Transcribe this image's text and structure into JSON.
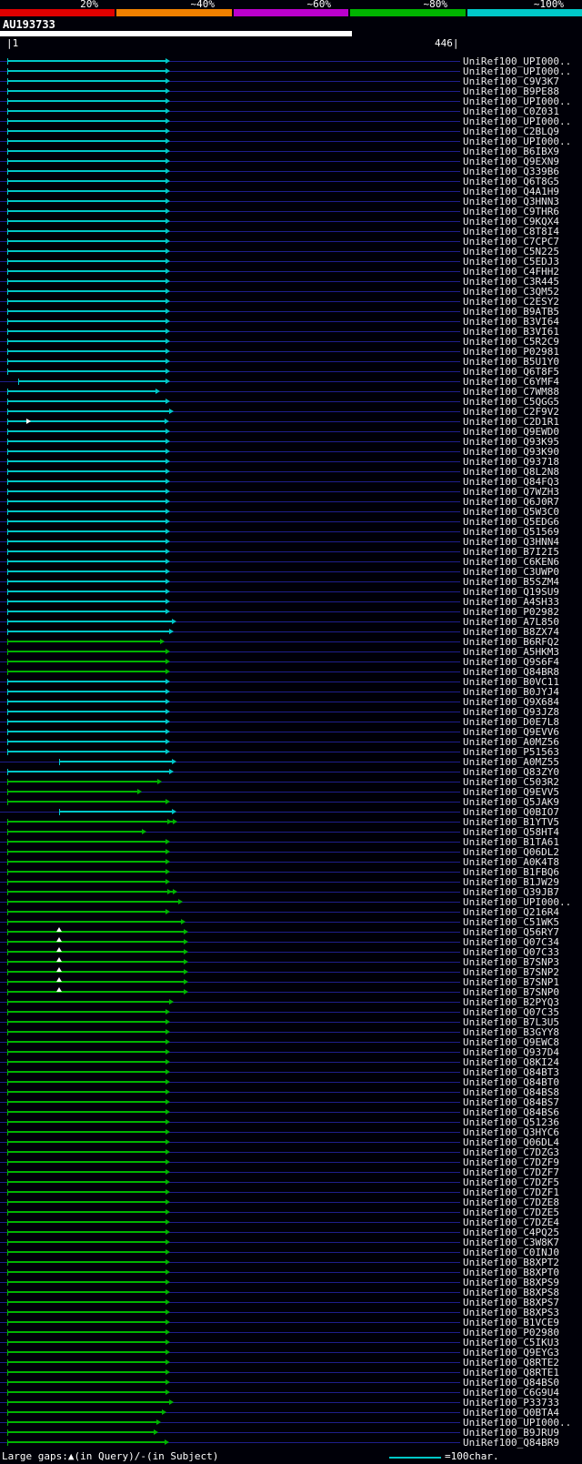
{
  "colors": {
    "background": "#000008",
    "grid_line": "#1e1e8a",
    "text": "#e8e8e8",
    "cyan": "#00c8c8",
    "green": "#00b400",
    "key_segments": [
      "#e00000",
      "#f08000",
      "#bb00cc",
      "#00b400",
      "#00c8c8"
    ],
    "query_bar": "#ffffff",
    "marker": "#ffffff"
  },
  "query": {
    "name": "AU193733"
  },
  "ruler": {
    "start_label": "|1",
    "end_label": "446|"
  },
  "footer": {
    "gaps_label": "Large gaps:▲(in Query)/-(in Subject)",
    "scale_label": "=100char."
  },
  "chart_data": {
    "type": "alignment_overview_span_chart",
    "title": "AU193733",
    "query_name": "AU193733",
    "query_range": [
      1,
      446
    ],
    "legend_position": "top",
    "identity_key": [
      {
        "label": "20%",
        "color": "#e00000"
      },
      {
        "label": "~40%",
        "color": "#f08000"
      },
      {
        "label": "~60%",
        "color": "#bb00cc"
      },
      {
        "label": "~80%",
        "color": "#00b400"
      },
      {
        "label": "~100%",
        "color": "#00c8c8"
      }
    ],
    "hits": [
      {
        "id": "UniRef100_UPI000..",
        "identity": "~100%",
        "qs": 1,
        "qe": 158
      },
      {
        "id": "UniRef100_UPI000..",
        "identity": "~100%",
        "qs": 1,
        "qe": 158
      },
      {
        "id": "UniRef100_C9V3K7",
        "identity": "~100%",
        "qs": 1,
        "qe": 158
      },
      {
        "id": "UniRef100_B9PE88",
        "identity": "~100%",
        "qs": 1,
        "qe": 158
      },
      {
        "id": "UniRef100_UPI000..",
        "identity": "~100%",
        "qs": 1,
        "qe": 158
      },
      {
        "id": "UniRef100_C0Z031",
        "identity": "~100%",
        "qs": 1,
        "qe": 158
      },
      {
        "id": "UniRef100_UPI000..",
        "identity": "~100%",
        "qs": 1,
        "qe": 158
      },
      {
        "id": "UniRef100_C2BLQ9",
        "identity": "~100%",
        "qs": 1,
        "qe": 158
      },
      {
        "id": "UniRef100_UPI000..",
        "identity": "~100%",
        "qs": 1,
        "qe": 158
      },
      {
        "id": "UniRef100_B6IBX9",
        "identity": "~100%",
        "qs": 1,
        "qe": 158
      },
      {
        "id": "UniRef100_Q9EXN9",
        "identity": "~100%",
        "qs": 1,
        "qe": 158
      },
      {
        "id": "UniRef100_Q339B6",
        "identity": "~100%",
        "qs": 1,
        "qe": 158
      },
      {
        "id": "UniRef100_Q6T8G5",
        "identity": "~100%",
        "qs": 1,
        "qe": 158
      },
      {
        "id": "UniRef100_Q4A1H9",
        "identity": "~100%",
        "qs": 1,
        "qe": 158
      },
      {
        "id": "UniRef100_Q3HNN3",
        "identity": "~100%",
        "qs": 1,
        "qe": 158
      },
      {
        "id": "UniRef100_C9THR6",
        "identity": "~100%",
        "qs": 1,
        "qe": 158
      },
      {
        "id": "UniRef100_C9KQX4",
        "identity": "~100%",
        "qs": 1,
        "qe": 158
      },
      {
        "id": "UniRef100_C8T8I4",
        "identity": "~100%",
        "qs": 1,
        "qe": 158
      },
      {
        "id": "UniRef100_C7CPC7",
        "identity": "~100%",
        "qs": 1,
        "qe": 158
      },
      {
        "id": "UniRef100_C5N225",
        "identity": "~100%",
        "qs": 1,
        "qe": 158
      },
      {
        "id": "UniRef100_C5EDJ3",
        "identity": "~100%",
        "qs": 1,
        "qe": 158
      },
      {
        "id": "UniRef100_C4FHH2",
        "identity": "~100%",
        "qs": 1,
        "qe": 158
      },
      {
        "id": "UniRef100_C3R445",
        "identity": "~100%",
        "qs": 1,
        "qe": 158
      },
      {
        "id": "UniRef100_C3QM52",
        "identity": "~100%",
        "qs": 1,
        "qe": 158
      },
      {
        "id": "UniRef100_C2ESY2",
        "identity": "~100%",
        "qs": 1,
        "qe": 158
      },
      {
        "id": "UniRef100_B9ATB5",
        "identity": "~100%",
        "qs": 1,
        "qe": 158
      },
      {
        "id": "UniRef100_B3VI64",
        "identity": "~100%",
        "qs": 1,
        "qe": 158
      },
      {
        "id": "UniRef100_B3VI61",
        "identity": "~100%",
        "qs": 1,
        "qe": 158
      },
      {
        "id": "UniRef100_C5R2C9",
        "identity": "~100%",
        "qs": 1,
        "qe": 158
      },
      {
        "id": "UniRef100_P02981",
        "identity": "~100%",
        "qs": 1,
        "qe": 158
      },
      {
        "id": "UniRef100_B5U1Y0",
        "identity": "~100%",
        "qs": 1,
        "qe": 158
      },
      {
        "id": "UniRef100_Q6T8F5",
        "identity": "~100%",
        "qs": 1,
        "qe": 158
      },
      {
        "id": "UniRef100_C6YMF4",
        "identity": "~100%",
        "qs": 12,
        "qe": 158
      },
      {
        "id": "UniRef100_C7WM88",
        "identity": "~100%",
        "qs": 1,
        "qe": 148
      },
      {
        "id": "UniRef100_C5QGG5",
        "identity": "~100%",
        "qs": 1,
        "qe": 158
      },
      {
        "id": "UniRef100_C2F9V2",
        "identity": "~100%",
        "qs": 1,
        "qe": 161
      },
      {
        "id": "UniRef100_C2D1R1",
        "identity": "~100%",
        "qs": 1,
        "qe": 157,
        "marks": [
          {
            "q": 23,
            "shape": "right"
          }
        ]
      },
      {
        "id": "UniRef100_Q9EWD0",
        "identity": "~100%",
        "qs": 1,
        "qe": 158
      },
      {
        "id": "UniRef100_Q93K95",
        "identity": "~100%",
        "qs": 1,
        "qe": 158
      },
      {
        "id": "UniRef100_Q93K90",
        "identity": "~100%",
        "qs": 1,
        "qe": 158
      },
      {
        "id": "UniRef100_Q93718",
        "identity": "~100%",
        "qs": 1,
        "qe": 158
      },
      {
        "id": "UniRef100_Q8L2N8",
        "identity": "~100%",
        "qs": 1,
        "qe": 158
      },
      {
        "id": "UniRef100_Q84FQ3",
        "identity": "~100%",
        "qs": 1,
        "qe": 158
      },
      {
        "id": "UniRef100_Q7WZH3",
        "identity": "~100%",
        "qs": 1,
        "qe": 158
      },
      {
        "id": "UniRef100_Q6J0R7",
        "identity": "~100%",
        "qs": 1,
        "qe": 158
      },
      {
        "id": "UniRef100_Q5W3C0",
        "identity": "~100%",
        "qs": 1,
        "qe": 158
      },
      {
        "id": "UniRef100_Q5EDG6",
        "identity": "~100%",
        "qs": 1,
        "qe": 158
      },
      {
        "id": "UniRef100_Q51569",
        "identity": "~100%",
        "qs": 1,
        "qe": 158
      },
      {
        "id": "UniRef100_Q3HNN4",
        "identity": "~100%",
        "qs": 1,
        "qe": 158
      },
      {
        "id": "UniRef100_B7I2I5",
        "identity": "~100%",
        "qs": 1,
        "qe": 158
      },
      {
        "id": "UniRef100_C6KEN6",
        "identity": "~100%",
        "qs": 1,
        "qe": 158
      },
      {
        "id": "UniRef100_C3UWP0",
        "identity": "~100%",
        "qs": 1,
        "qe": 158
      },
      {
        "id": "UniRef100_B5SZM4",
        "identity": "~100%",
        "qs": 1,
        "qe": 158
      },
      {
        "id": "UniRef100_Q19SU9",
        "identity": "~100%",
        "qs": 1,
        "qe": 158
      },
      {
        "id": "UniRef100_A4SH33",
        "identity": "~100%",
        "qs": 1,
        "qe": 158
      },
      {
        "id": "UniRef100_P02982",
        "identity": "~100%",
        "qs": 1,
        "qe": 158
      },
      {
        "id": "UniRef100_A7L850",
        "identity": "~100%",
        "qs": 1,
        "qe": 164
      },
      {
        "id": "UniRef100_B8ZX74",
        "identity": "~100%",
        "qs": 1,
        "qe": 161
      },
      {
        "id": "UniRef100_B6RFQ2",
        "identity": "~80%",
        "qs": 1,
        "qe": 152
      },
      {
        "id": "UniRef100_A5HKM3",
        "identity": "~80%",
        "qs": 1,
        "qe": 158
      },
      {
        "id": "UniRef100_Q9S6F4",
        "identity": "~80%",
        "qs": 1,
        "qe": 158
      },
      {
        "id": "UniRef100_Q84BR8",
        "identity": "~80%",
        "qs": 1,
        "qe": 158
      },
      {
        "id": "UniRef100_B0VC11",
        "identity": "~100%",
        "qs": 1,
        "qe": 158
      },
      {
        "id": "UniRef100_B0JYJ4",
        "identity": "~100%",
        "qs": 1,
        "qe": 158
      },
      {
        "id": "UniRef100_Q9X684",
        "identity": "~100%",
        "qs": 1,
        "qe": 158
      },
      {
        "id": "UniRef100_Q93JZ8",
        "identity": "~100%",
        "qs": 1,
        "qe": 158
      },
      {
        "id": "UniRef100_D0E7L8",
        "identity": "~100%",
        "qs": 1,
        "qe": 158
      },
      {
        "id": "UniRef100_Q9EVV6",
        "identity": "~100%",
        "qs": 1,
        "qe": 158
      },
      {
        "id": "UniRef100_A0MZ56",
        "identity": "~100%",
        "qs": 1,
        "qe": 158
      },
      {
        "id": "UniRef100_P51563",
        "identity": "~100%",
        "qs": 1,
        "qe": 158
      },
      {
        "id": "UniRef100_A0MZ55",
        "identity": "~100%",
        "qs": 52,
        "qe": 164
      },
      {
        "id": "UniRef100_Q83ZY0",
        "identity": "~100%",
        "qs": 1,
        "qe": 161
      },
      {
        "id": "UniRef100_C503R2",
        "identity": "~80%",
        "qs": 1,
        "qe": 150
      },
      {
        "id": "UniRef100_Q9EVV5",
        "identity": "~80%",
        "qs": 1,
        "qe": 130
      },
      {
        "id": "UniRef100_Q5JAK9",
        "identity": "~80%",
        "qs": 1,
        "qe": 158
      },
      {
        "id": "UniRef100_Q0BIO7",
        "identity": "~100%",
        "qs": 52,
        "qe": 164
      },
      {
        "id": "UniRef100_B1YTV5",
        "identity": "~80%",
        "qs": 1,
        "qe": 165,
        "arrows": 2
      },
      {
        "id": "UniRef100_Q58HT4",
        "identity": "~80%",
        "qs": 1,
        "qe": 134
      },
      {
        "id": "UniRef100_B1TA61",
        "identity": "~80%",
        "qs": 1,
        "qe": 158
      },
      {
        "id": "UniRef100_Q06DL2",
        "identity": "~80%",
        "qs": 1,
        "qe": 158
      },
      {
        "id": "UniRef100_A0K4T8",
        "identity": "~80%",
        "qs": 1,
        "qe": 158
      },
      {
        "id": "UniRef100_B1FBQ6",
        "identity": "~80%",
        "qs": 1,
        "qe": 158
      },
      {
        "id": "UniRef100_B1JW29",
        "identity": "~80%",
        "qs": 1,
        "qe": 158
      },
      {
        "id": "UniRef100_Q39JB7",
        "identity": "~80%",
        "qs": 1,
        "qe": 165,
        "arrows": 2
      },
      {
        "id": "UniRef100_UPI000..",
        "identity": "~80%",
        "qs": 1,
        "qe": 170
      },
      {
        "id": "UniRef100_Q216R4",
        "identity": "~80%",
        "qs": 1,
        "qe": 158
      },
      {
        "id": "UniRef100_C51WK5",
        "identity": "~80%",
        "qs": 1,
        "qe": 173
      },
      {
        "id": "UniRef100_Q56RY7",
        "identity": "~80%",
        "qs": 1,
        "qe": 176,
        "marks": [
          {
            "q": 52,
            "shape": "up"
          }
        ]
      },
      {
        "id": "UniRef100_Q07C34",
        "identity": "~80%",
        "qs": 1,
        "qe": 176,
        "marks": [
          {
            "q": 52,
            "shape": "up"
          }
        ]
      },
      {
        "id": "UniRef100_Q07C33",
        "identity": "~80%",
        "qs": 1,
        "qe": 176,
        "marks": [
          {
            "q": 52,
            "shape": "up"
          }
        ]
      },
      {
        "id": "UniRef100_B7SNP3",
        "identity": "~80%",
        "qs": 1,
        "qe": 176,
        "marks": [
          {
            "q": 52,
            "shape": "up"
          }
        ]
      },
      {
        "id": "UniRef100_B7SNP2",
        "identity": "~80%",
        "qs": 1,
        "qe": 176,
        "marks": [
          {
            "q": 52,
            "shape": "up"
          }
        ]
      },
      {
        "id": "UniRef100_B7SNP1",
        "identity": "~80%",
        "qs": 1,
        "qe": 176,
        "marks": [
          {
            "q": 52,
            "shape": "up"
          }
        ]
      },
      {
        "id": "UniRef100_B7SNP0",
        "identity": "~80%",
        "qs": 1,
        "qe": 176,
        "marks": [
          {
            "q": 52,
            "shape": "up"
          }
        ]
      },
      {
        "id": "UniRef100_B2PYQ3",
        "identity": "~80%",
        "qs": 1,
        "qe": 161
      },
      {
        "id": "UniRef100_Q07C35",
        "identity": "~80%",
        "qs": 1,
        "qe": 158
      },
      {
        "id": "UniRef100_B7L3U5",
        "identity": "~80%",
        "qs": 1,
        "qe": 158
      },
      {
        "id": "UniRef100_B3GYY8",
        "identity": "~80%",
        "qs": 1,
        "qe": 158
      },
      {
        "id": "UniRef100_Q9EWC8",
        "identity": "~80%",
        "qs": 1,
        "qe": 158
      },
      {
        "id": "UniRef100_Q937D4",
        "identity": "~80%",
        "qs": 1,
        "qe": 158
      },
      {
        "id": "UniRef100_Q8KI24",
        "identity": "~80%",
        "qs": 1,
        "qe": 158
      },
      {
        "id": "UniRef100_Q84BT3",
        "identity": "~80%",
        "qs": 1,
        "qe": 158
      },
      {
        "id": "UniRef100_Q84BT0",
        "identity": "~80%",
        "qs": 1,
        "qe": 158
      },
      {
        "id": "UniRef100_Q84BS8",
        "identity": "~80%",
        "qs": 1,
        "qe": 158
      },
      {
        "id": "UniRef100_Q84BS7",
        "identity": "~80%",
        "qs": 1,
        "qe": 158
      },
      {
        "id": "UniRef100_Q84BS6",
        "identity": "~80%",
        "qs": 1,
        "qe": 158
      },
      {
        "id": "UniRef100_Q51236",
        "identity": "~80%",
        "qs": 1,
        "qe": 158
      },
      {
        "id": "UniRef100_Q3HYC6",
        "identity": "~80%",
        "qs": 1,
        "qe": 158
      },
      {
        "id": "UniRef100_Q06DL4",
        "identity": "~80%",
        "qs": 1,
        "qe": 158
      },
      {
        "id": "UniRef100_C7DZG3",
        "identity": "~80%",
        "qs": 1,
        "qe": 158
      },
      {
        "id": "UniRef100_C7DZF9",
        "identity": "~80%",
        "qs": 1,
        "qe": 158
      },
      {
        "id": "UniRef100_C7DZF7",
        "identity": "~80%",
        "qs": 1,
        "qe": 158
      },
      {
        "id": "UniRef100_C7DZF5",
        "identity": "~80%",
        "qs": 1,
        "qe": 158
      },
      {
        "id": "UniRef100_C7DZF1",
        "identity": "~80%",
        "qs": 1,
        "qe": 158
      },
      {
        "id": "UniRef100_C7DZE8",
        "identity": "~80%",
        "qs": 1,
        "qe": 158
      },
      {
        "id": "UniRef100_C7DZE5",
        "identity": "~80%",
        "qs": 1,
        "qe": 158
      },
      {
        "id": "UniRef100_C7DZE4",
        "identity": "~80%",
        "qs": 1,
        "qe": 158
      },
      {
        "id": "UniRef100_C4PQ25",
        "identity": "~80%",
        "qs": 1,
        "qe": 158
      },
      {
        "id": "UniRef100_C3W8K7",
        "identity": "~80%",
        "qs": 1,
        "qe": 158
      },
      {
        "id": "UniRef100_C0INJ0",
        "identity": "~80%",
        "qs": 1,
        "qe": 158
      },
      {
        "id": "UniRef100_B8XPT2",
        "identity": "~80%",
        "qs": 1,
        "qe": 158
      },
      {
        "id": "UniRef100_B8XPT0",
        "identity": "~80%",
        "qs": 1,
        "qe": 158
      },
      {
        "id": "UniRef100_B8XPS9",
        "identity": "~80%",
        "qs": 1,
        "qe": 158
      },
      {
        "id": "UniRef100_B8XPS8",
        "identity": "~80%",
        "qs": 1,
        "qe": 158
      },
      {
        "id": "UniRef100_B8XPS7",
        "identity": "~80%",
        "qs": 1,
        "qe": 158
      },
      {
        "id": "UniRef100_B8XPS3",
        "identity": "~80%",
        "qs": 1,
        "qe": 158
      },
      {
        "id": "UniRef100_B1VCE9",
        "identity": "~80%",
        "qs": 1,
        "qe": 158
      },
      {
        "id": "UniRef100_P02980",
        "identity": "~80%",
        "qs": 1,
        "qe": 158
      },
      {
        "id": "UniRef100_C5IKU3",
        "identity": "~80%",
        "qs": 1,
        "qe": 158
      },
      {
        "id": "UniRef100_Q9EYG3",
        "identity": "~80%",
        "qs": 1,
        "qe": 158
      },
      {
        "id": "UniRef100_Q8RTE2",
        "identity": "~80%",
        "qs": 1,
        "qe": 158
      },
      {
        "id": "UniRef100_Q8RTE1",
        "identity": "~80%",
        "qs": 1,
        "qe": 158
      },
      {
        "id": "UniRef100_Q84BS0",
        "identity": "~80%",
        "qs": 1,
        "qe": 158
      },
      {
        "id": "UniRef100_C6G9U4",
        "identity": "~80%",
        "qs": 1,
        "qe": 158
      },
      {
        "id": "UniRef100_P33733",
        "identity": "~80%",
        "qs": 1,
        "qe": 161
      },
      {
        "id": "UniRef100_Q0BTA4",
        "identity": "~80%",
        "qs": 1,
        "qe": 154
      },
      {
        "id": "UniRef100_UPI000..",
        "identity": "~80%",
        "qs": 1,
        "qe": 149
      },
      {
        "id": "UniRef100_B9JRU9",
        "identity": "~80%",
        "qs": 1,
        "qe": 146
      },
      {
        "id": "UniRef100_Q84BR9",
        "identity": "~80%",
        "qs": 1,
        "qe": 157
      }
    ]
  }
}
